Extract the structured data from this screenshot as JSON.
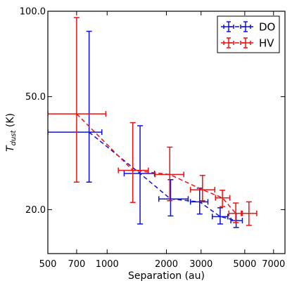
{
  "chart_data": {
    "type": "scatter",
    "title": "",
    "xlabel": "Separation (au)",
    "ylabel_main": "T",
    "ylabel_sub": "dust",
    "ylabel_unit": " (K)",
    "x_scale": "log",
    "y_scale": "log",
    "xlim": [
      500,
      8000
    ],
    "ylim": [
      14,
      100
    ],
    "x_ticks": [
      {
        "value": 500,
        "label": "500"
      },
      {
        "value": 700,
        "label": "700"
      },
      {
        "value": 1000,
        "label": "1000"
      },
      {
        "value": 2000,
        "label": "2000"
      },
      {
        "value": 3000,
        "label": "3000"
      },
      {
        "value": 5000,
        "label": "5000"
      },
      {
        "value": 7000,
        "label": "7000"
      }
    ],
    "y_ticks": [
      {
        "value": 20,
        "label": "20.0"
      },
      {
        "value": 50,
        "label": "50.0"
      },
      {
        "value": 100,
        "label": "100.0"
      }
    ],
    "grid": false,
    "legend_position": "top-right",
    "series": [
      {
        "name": "DO",
        "color": "#1010dd",
        "points": [
          {
            "x": 810,
            "y": 37.5,
            "x_lo": 500,
            "x_hi": 940,
            "y_lo": 25.0,
            "y_hi": 85.0
          },
          {
            "x": 1470,
            "y": 26.8,
            "x_lo": 1220,
            "x_hi": 1740,
            "y_lo": 17.8,
            "y_hi": 39.5
          },
          {
            "x": 2100,
            "y": 21.8,
            "x_lo": 1830,
            "x_hi": 2580,
            "y_lo": 19.0,
            "y_hi": 25.5
          },
          {
            "x": 2950,
            "y": 21.3,
            "x_lo": 2650,
            "x_hi": 3250,
            "y_lo": 19.3,
            "y_hi": 23.8
          },
          {
            "x": 3750,
            "y": 18.9,
            "x_lo": 3420,
            "x_hi": 4100,
            "y_lo": 17.8,
            "y_hi": 20.3
          },
          {
            "x": 4520,
            "y": 18.3,
            "x_lo": 4250,
            "x_hi": 4860,
            "y_lo": 17.3,
            "y_hi": 19.4
          }
        ]
      },
      {
        "name": "HV",
        "color": "#ee1111",
        "points": [
          {
            "x": 700,
            "y": 43.5,
            "x_lo": 500,
            "x_hi": 985,
            "y_lo": 25.0,
            "y_hi": 95.0
          },
          {
            "x": 1350,
            "y": 27.5,
            "x_lo": 1140,
            "x_hi": 1620,
            "y_lo": 21.2,
            "y_hi": 40.5
          },
          {
            "x": 2080,
            "y": 26.6,
            "x_lo": 1750,
            "x_hi": 2450,
            "y_lo": 21.5,
            "y_hi": 33.2
          },
          {
            "x": 3050,
            "y": 23.5,
            "x_lo": 2650,
            "x_hi": 3520,
            "y_lo": 21.5,
            "y_hi": 26.4
          },
          {
            "x": 3850,
            "y": 22.0,
            "x_lo": 3550,
            "x_hi": 4200,
            "y_lo": 20.5,
            "y_hi": 23.4
          },
          {
            "x": 4500,
            "y": 19.4,
            "x_lo": 4150,
            "x_hi": 4850,
            "y_lo": 18.0,
            "y_hi": 21.1
          },
          {
            "x": 5250,
            "y": 19.4,
            "x_lo": 4800,
            "x_hi": 5750,
            "y_lo": 17.6,
            "y_hi": 21.3
          }
        ]
      }
    ]
  }
}
